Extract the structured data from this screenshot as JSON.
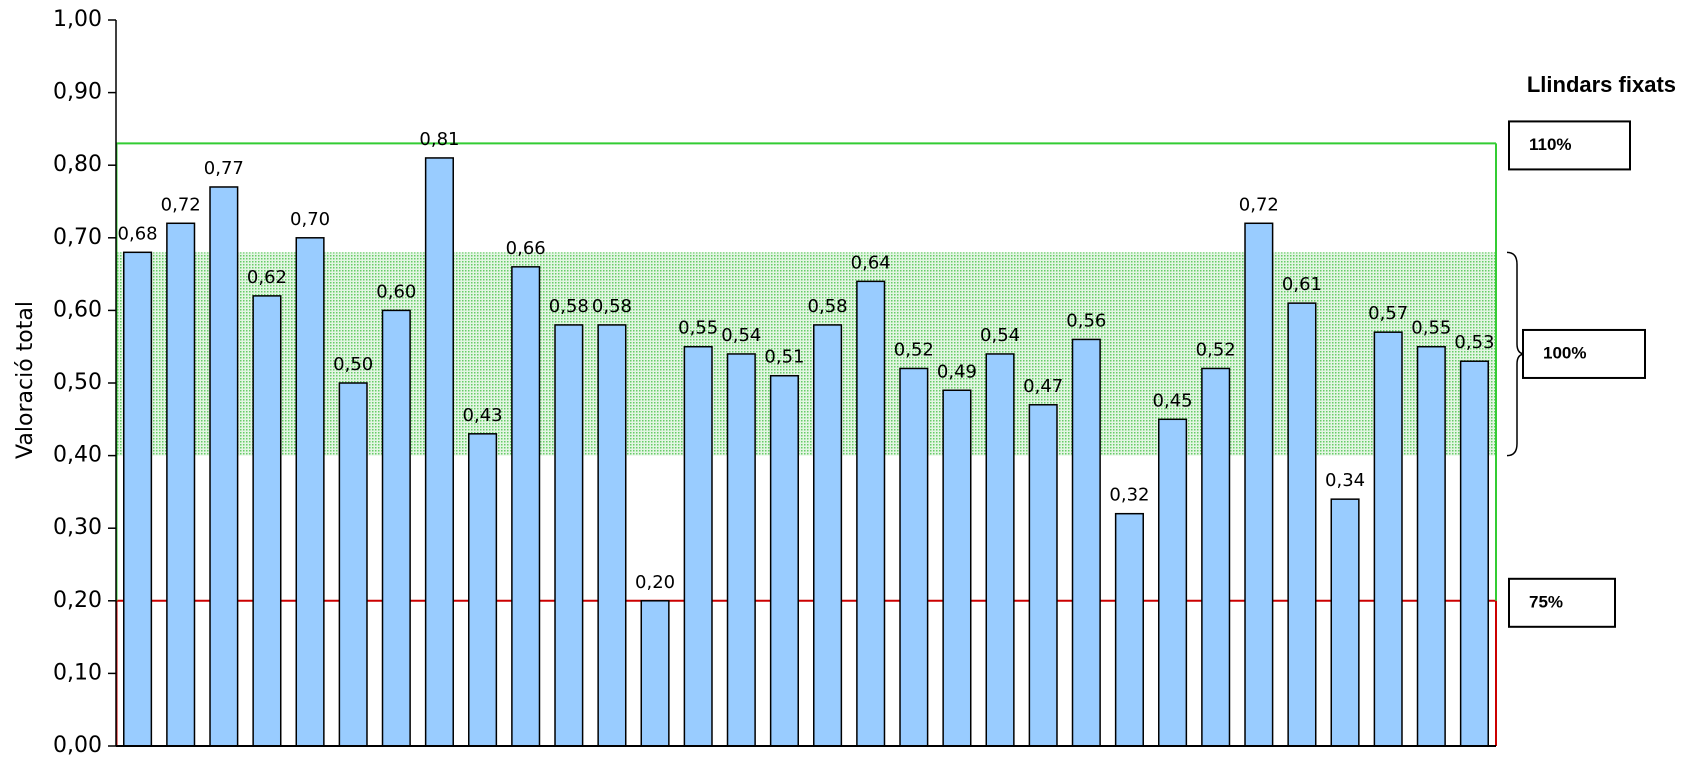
{
  "chart_data": {
    "type": "bar",
    "y_label": "Valoració total",
    "values": [
      0.68,
      0.72,
      0.77,
      0.62,
      0.7,
      0.5,
      0.6,
      0.81,
      0.43,
      0.66,
      0.58,
      0.58,
      0.2,
      0.55,
      0.54,
      0.51,
      0.58,
      0.64,
      0.52,
      0.49,
      0.54,
      0.47,
      0.56,
      0.32,
      0.45,
      0.52,
      0.72,
      0.61,
      0.34,
      0.57,
      0.55,
      0.53
    ],
    "value_labels": [
      "0,68",
      "0,72",
      "0,77",
      "0,62",
      "0,70",
      "0,50",
      "0,60",
      "0,81",
      "0,43",
      "0,66",
      "0,58",
      "0,58",
      "0,20",
      "0,55",
      "0,54",
      "0,51",
      "0,58",
      "0,64",
      "0,52",
      "0,49",
      "0,54",
      "0,47",
      "0,56",
      "0,32",
      "0,45",
      "0,52",
      "0,72",
      "0,61",
      "0,34",
      "0,57",
      "0,55",
      "0,53"
    ],
    "color": "#99ccff",
    "ylim": [
      0,
      1
    ],
    "yticks": [
      {
        "value": 0,
        "label": "0,00"
      },
      {
        "value": 0.1,
        "label": "0,10"
      },
      {
        "value": 0.2,
        "label": "0,20"
      },
      {
        "value": 0.3,
        "label": "0,30"
      },
      {
        "value": 0.4,
        "label": "0,40"
      },
      {
        "value": 0.5,
        "label": "0,50"
      },
      {
        "value": 0.6,
        "label": "0,60"
      },
      {
        "value": 0.7,
        "label": "0,70"
      },
      {
        "value": 0.8,
        "label": "0,80"
      },
      {
        "value": 0.9,
        "label": "0,90"
      },
      {
        "value": 1,
        "label": "1,00"
      }
    ],
    "legend_title": "Llindars fixats",
    "thresholds": [
      {
        "label": "110%",
        "value": 0.83,
        "color": "#33cc33"
      },
      {
        "label": "100%",
        "range": [
          0.4,
          0.68
        ],
        "color": "#33cc33"
      },
      {
        "label": "75%",
        "value": 0.2,
        "color": "#cc0000"
      }
    ]
  }
}
